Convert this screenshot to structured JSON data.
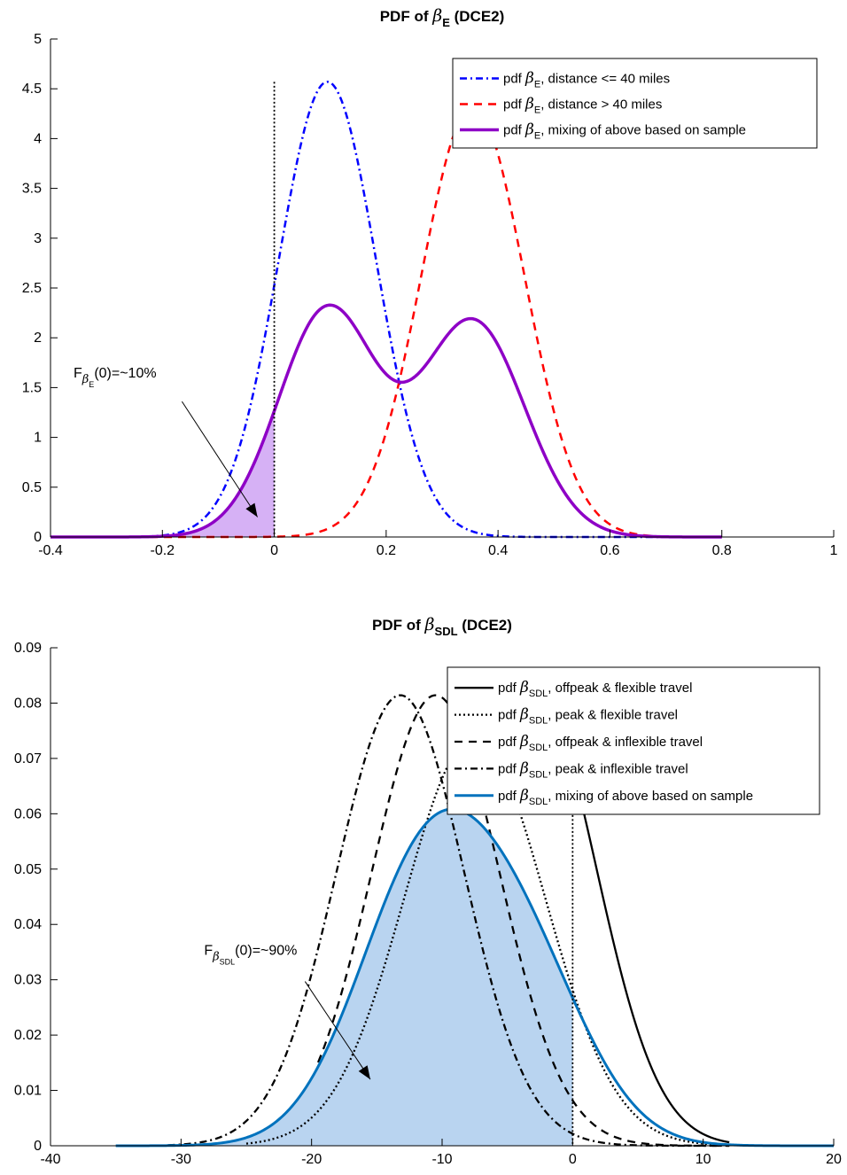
{
  "chart_data": [
    {
      "type": "line",
      "title": {
        "pre": "PDF of ",
        "sym": "β",
        "sub": "E",
        "post": " (DCE2)"
      },
      "xlim": [
        -0.4,
        1
      ],
      "ylim": [
        0,
        5
      ],
      "xticks": [
        -0.4,
        -0.2,
        0,
        0.2,
        0.4,
        0.6,
        0.8,
        1
      ],
      "xtick_labels": [
        "-0.4",
        "-0.2",
        "0",
        "0.2",
        "0.4",
        "0.6",
        "0.8",
        "1"
      ],
      "yticks": [
        0,
        0.5,
        1,
        1.5,
        2,
        2.5,
        3,
        3.5,
        4,
        4.5,
        5
      ],
      "ytick_labels": [
        "0",
        "0.5",
        "1",
        "1.5",
        "2",
        "2.5",
        "3",
        "3.5",
        "4",
        "4.5",
        "5"
      ],
      "legend_position": "top-right",
      "series": [
        {
          "name": "pdf β_E, distance <= 40 miles",
          "legend_pre": "pdf ",
          "legend_sub": "E",
          "legend_post": ", distance <= 40 miles",
          "dist": "normal",
          "mean": 0.095,
          "sd": 0.0873,
          "x_range": [
            -0.4,
            0.8
          ],
          "color": "#0000ff",
          "style": "dashdot",
          "width": 2.5
        },
        {
          "name": "pdf β_E, distance > 40 miles",
          "legend_pre": "pdf ",
          "legend_sub": "E",
          "legend_post": ", distance > 40 miles",
          "dist": "normal",
          "mean": 0.355,
          "sd": 0.0922,
          "x_range": [
            -0.4,
            0.8
          ],
          "color": "#ff0000",
          "style": "dashed",
          "width": 2.5
        },
        {
          "name": "pdf β_E, mixing of above based on sample",
          "legend_pre": "pdf ",
          "legend_sub": "E",
          "legend_post": ", mixing of above based on sample",
          "dist": "mixture",
          "weights": [
            0.5,
            0.5
          ],
          "x_range": [
            -0.4,
            0.8
          ],
          "color": "#8e00c6",
          "style": "solid",
          "width": 3.5
        }
      ],
      "shaded_region": {
        "x_from": -0.4,
        "x_to": 0,
        "fill": "#d6b1f5",
        "edge": "#8e00c6"
      },
      "vertical_line": {
        "x": 0,
        "y_max": 4.57,
        "style": "dotted"
      },
      "annotation": {
        "pre": "F",
        "sym": "β",
        "sub": "E",
        "post": "(0)=~10%",
        "text_at": [
          -0.4,
          1.6
        ],
        "arrow_from": [
          -0.165,
          1.36
        ],
        "arrow_to": [
          -0.03,
          0.2
        ]
      }
    },
    {
      "type": "line",
      "title": {
        "pre": "PDF of ",
        "sym": "β",
        "sub": "SDL",
        "post": " (DCE2)"
      },
      "xlim": [
        -40,
        20
      ],
      "ylim": [
        0,
        0.09
      ],
      "xticks": [
        -40,
        -30,
        -20,
        -10,
        0,
        10,
        20
      ],
      "xtick_labels": [
        "-40",
        "-30",
        "-20",
        "-10",
        "0",
        "10",
        "20"
      ],
      "yticks": [
        0,
        0.01,
        0.02,
        0.03,
        0.04,
        0.05,
        0.06,
        0.07,
        0.08,
        0.09
      ],
      "ytick_labels": [
        "0",
        "0.01",
        "0.02",
        "0.03",
        "0.04",
        "0.05",
        "0.06",
        "0.07",
        "0.08",
        "0.09"
      ],
      "legend_position": "top-right",
      "series": [
        {
          "name": "pdf β_SDL, offpeak & flexible travel",
          "legend_pre": "pdf ",
          "legend_sub": "SDL",
          "legend_post": ", offpeak & flexible travel",
          "dist": "normal",
          "mean": -3,
          "sd": 4.8,
          "x_range": [
            0,
            12
          ],
          "color": "#000000",
          "style": "solid",
          "width": 2.3
        },
        {
          "name": "pdf β_SDL, peak & flexible travel",
          "legend_pre": "pdf ",
          "legend_sub": "SDL",
          "legend_post": ", peak & flexible travel",
          "dist": "normal",
          "mean": -7.5,
          "sd": 5.4,
          "x_range": [
            -25,
            12
          ],
          "color": "#000000",
          "style": "dotted",
          "width": 2.3
        },
        {
          "name": "pdf β_SDL, offpeak & inflexible travel",
          "legend_pre": "pdf ",
          "legend_sub": "SDL",
          "legend_post": ", offpeak & inflexible travel",
          "dist": "normal",
          "mean": -10.5,
          "sd": 4.9,
          "x_range": [
            -19.5,
            12
          ],
          "color": "#000000",
          "style": "dashed",
          "width": 2.3
        },
        {
          "name": "pdf β_SDL, peak & inflexible travel",
          "legend_pre": "pdf ",
          "legend_sub": "SDL",
          "legend_post": ", peak & inflexible travel",
          "dist": "normal",
          "mean": -13.2,
          "sd": 4.9,
          "x_range": [
            -31,
            12
          ],
          "color": "#000000",
          "style": "dashdot",
          "width": 2.3
        },
        {
          "name": "pdf β_SDL, mixing of above based on sample",
          "legend_pre": "pdf ",
          "legend_sub": "SDL",
          "legend_post": ", mixing of above based on sample",
          "dist": "mixture",
          "weights": [
            0.25,
            0.25,
            0.25,
            0.25
          ],
          "x_range": [
            -35,
            20
          ],
          "color": "#0072bd",
          "style": "solid",
          "width": 3
        }
      ],
      "shaded_region": {
        "x_from": -35,
        "x_to": 0,
        "fill": "#b9d4f0",
        "edge": "#0072bd"
      },
      "vertical_line": {
        "x": 0,
        "y_max": 0.072,
        "style": "dotted"
      },
      "annotation": {
        "pre": "F",
        "sym": "β",
        "sub": "SDL",
        "post": "(0)=~90%",
        "text_at": [
          -30,
          0.0345
        ],
        "arrow_from": [
          -20.5,
          0.0297
        ],
        "arrow_to": [
          -15.5,
          0.012
        ]
      }
    }
  ]
}
